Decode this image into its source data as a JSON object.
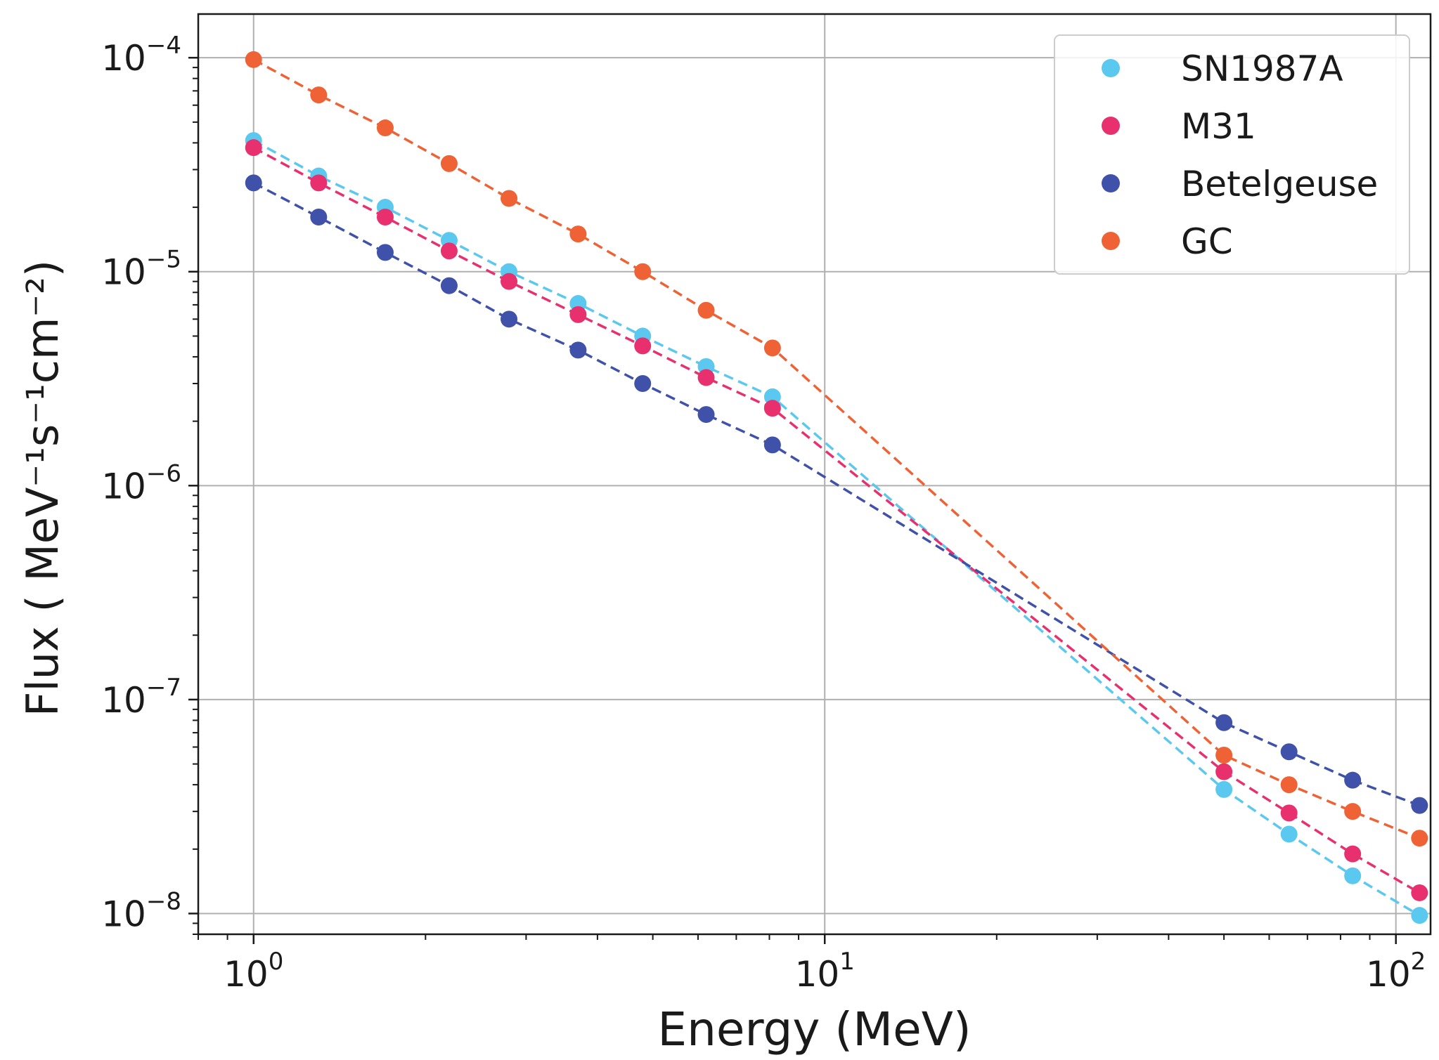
{
  "chart_data": {
    "type": "scatter",
    "x_scale": "log",
    "y_scale": "log",
    "xlim": [
      0.8,
      115
    ],
    "ylim": [
      8e-09,
      0.00016
    ],
    "grid": true,
    "legend_position": "top-right",
    "xlabel": "Energy (MeV)",
    "ylabel": "Flux ( MeV⁻¹s⁻¹cm⁻²)",
    "x_ticks": [
      {
        "value": 1,
        "base": "10",
        "exp": "0"
      },
      {
        "value": 10,
        "base": "10",
        "exp": "1"
      },
      {
        "value": 100,
        "base": "10",
        "exp": "2"
      }
    ],
    "y_ticks": [
      {
        "value": 1e-08,
        "base": "10",
        "exp": "−8"
      },
      {
        "value": 1e-07,
        "base": "10",
        "exp": "−7"
      },
      {
        "value": 1e-06,
        "base": "10",
        "exp": "−6"
      },
      {
        "value": 1e-05,
        "base": "10",
        "exp": "−5"
      },
      {
        "value": 0.0001,
        "base": "10",
        "exp": "−4"
      }
    ],
    "x": [
      1.0,
      1.3,
      1.7,
      2.2,
      2.8,
      3.7,
      4.8,
      6.2,
      8.1,
      50,
      65,
      84,
      110
    ],
    "series": [
      {
        "name": "SN1987A",
        "color": "#5bc8f0",
        "values": [
          4.1e-05,
          2.8e-05,
          2e-05,
          1.4e-05,
          1e-05,
          7.1e-06,
          5e-06,
          3.6e-06,
          2.6e-06,
          3.8e-08,
          2.35e-08,
          1.5e-08,
          9.8e-09
        ]
      },
      {
        "name": "M31",
        "color": "#e8306e",
        "values": [
          3.8e-05,
          2.6e-05,
          1.8e-05,
          1.25e-05,
          9e-06,
          6.3e-06,
          4.5e-06,
          3.2e-06,
          2.3e-06,
          4.6e-08,
          2.95e-08,
          1.9e-08,
          1.25e-08
        ]
      },
      {
        "name": "Betelgeuse",
        "color": "#3f51a8",
        "values": [
          2.6e-05,
          1.8e-05,
          1.23e-05,
          8.6e-06,
          6e-06,
          4.3e-06,
          3e-06,
          2.15e-06,
          1.55e-06,
          7.8e-08,
          5.7e-08,
          4.2e-08,
          3.2e-08
        ]
      },
      {
        "name": "GC",
        "color": "#ef6235",
        "values": [
          9.8e-05,
          6.7e-05,
          4.7e-05,
          3.2e-05,
          2.2e-05,
          1.5e-05,
          1e-05,
          6.6e-06,
          4.4e-06,
          5.5e-08,
          4e-08,
          3e-08,
          2.25e-08
        ]
      }
    ]
  }
}
